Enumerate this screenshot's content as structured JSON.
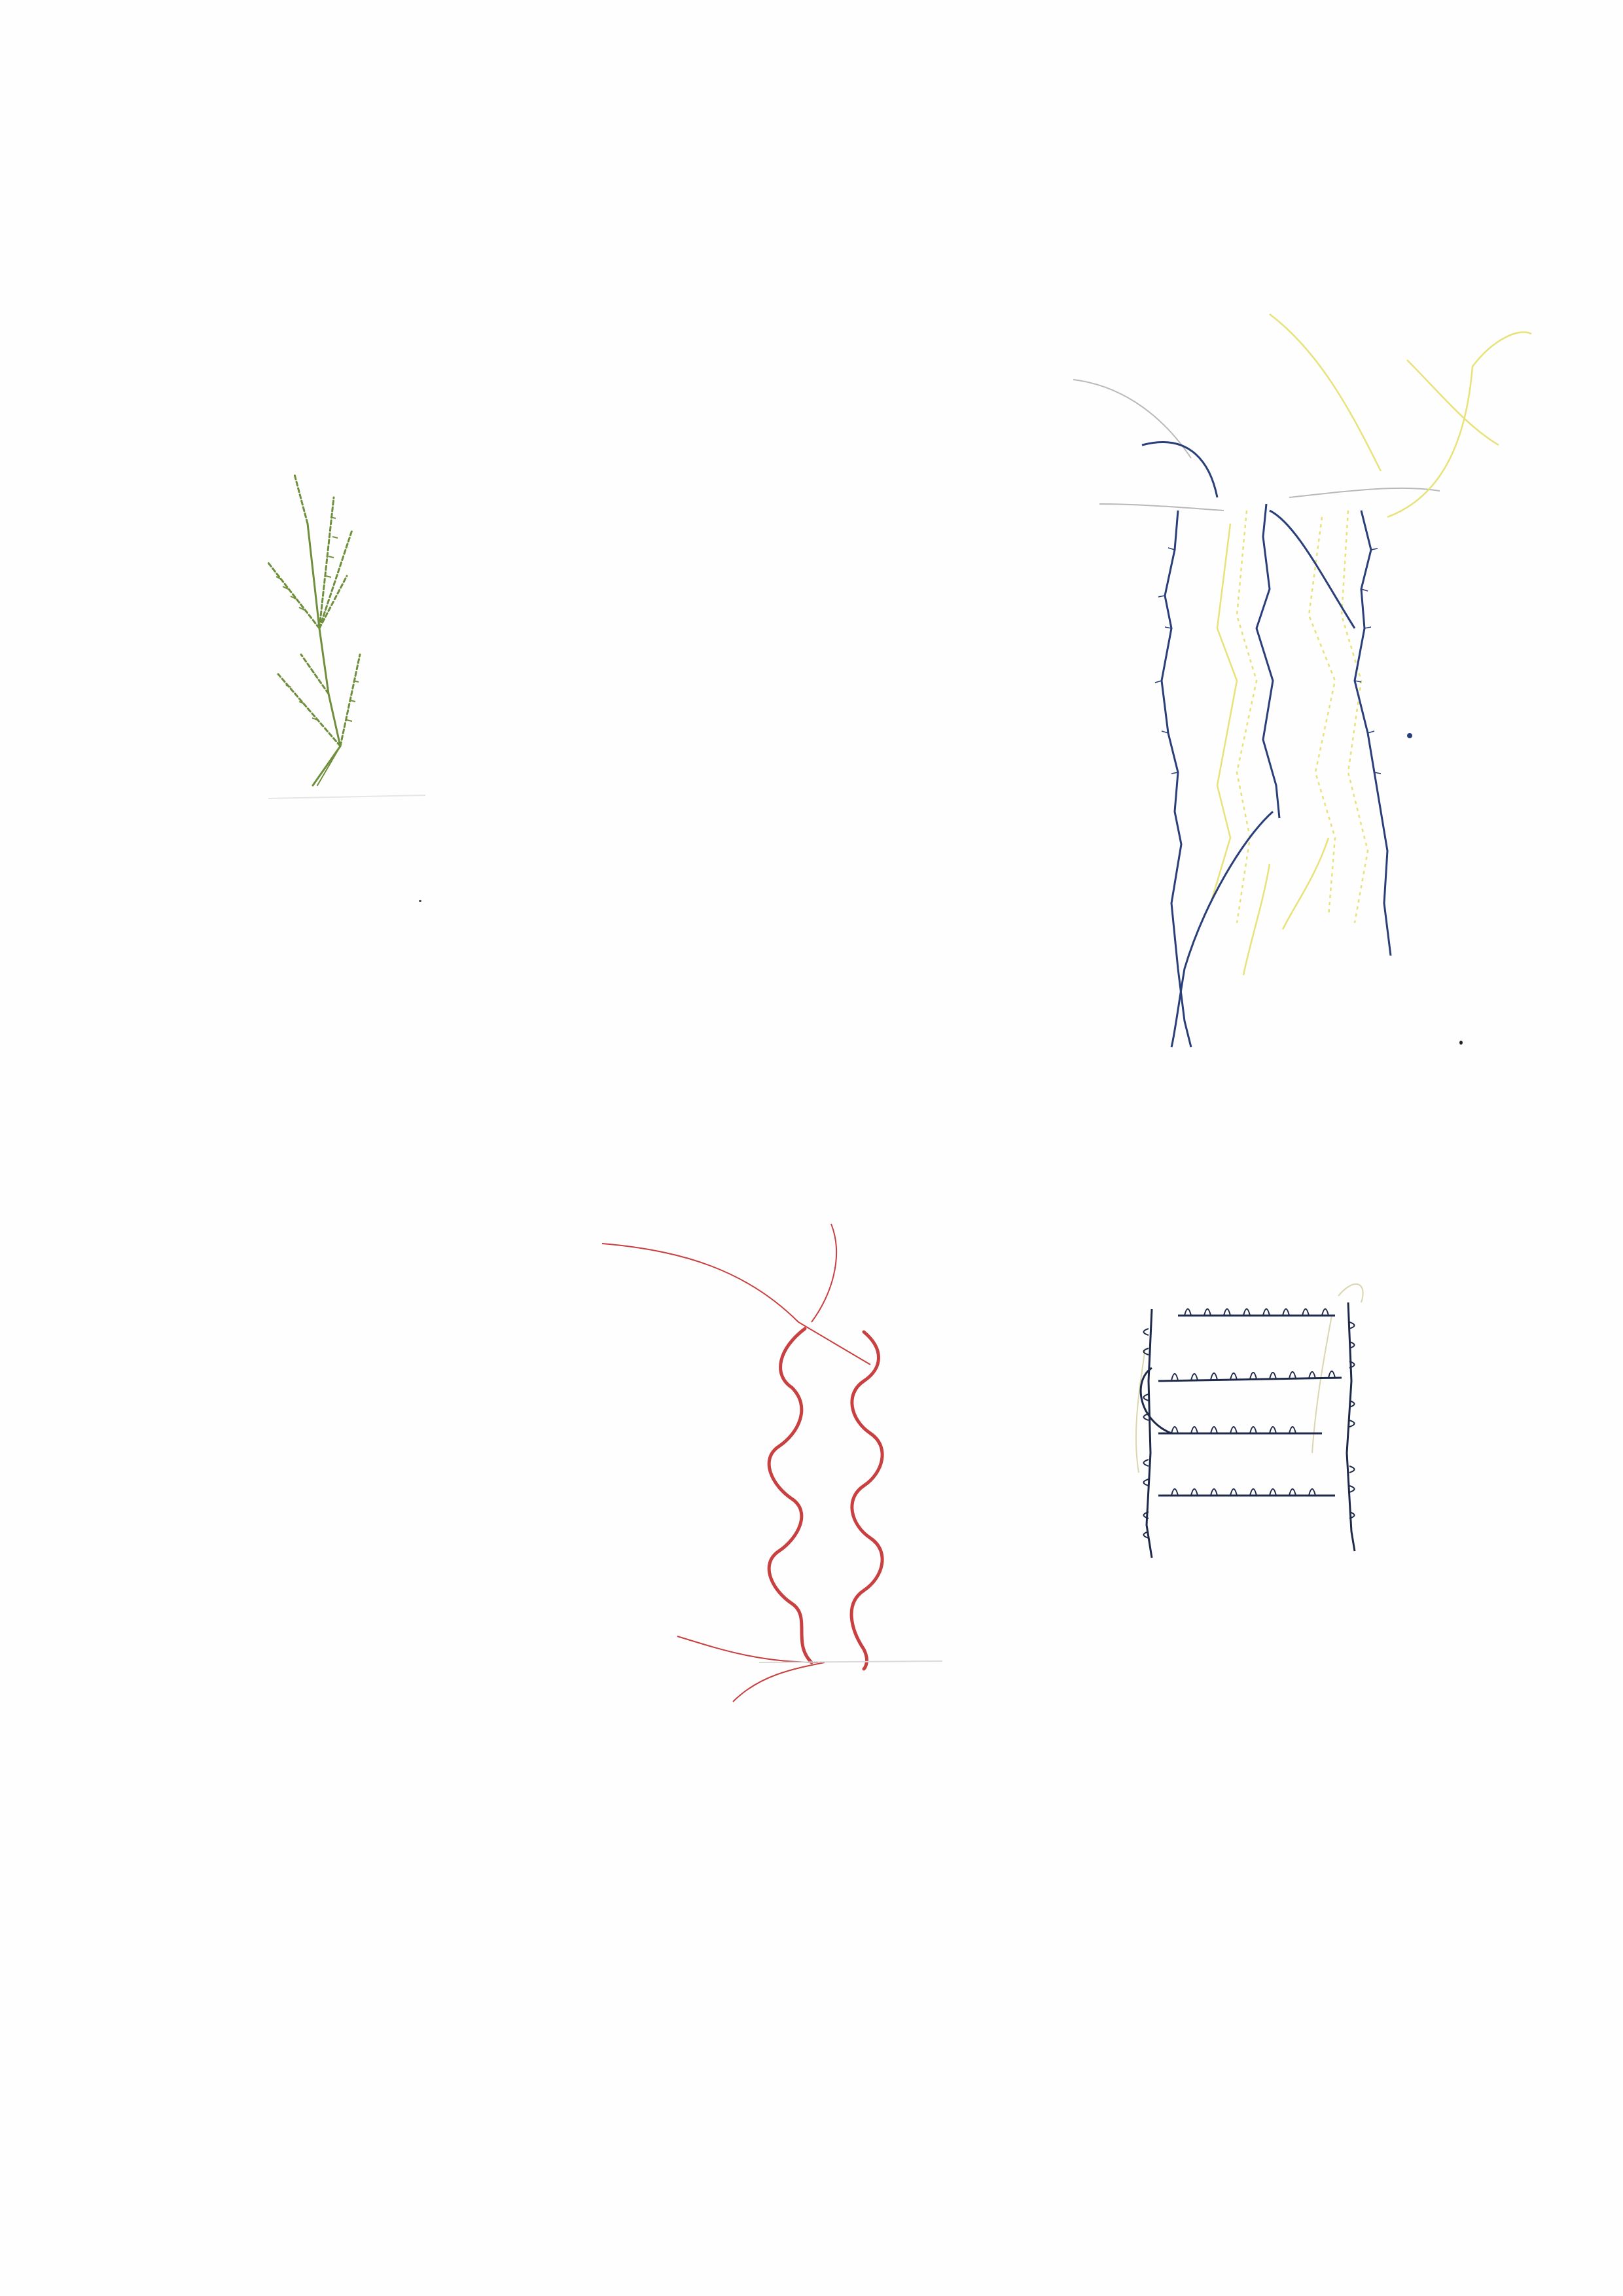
{
  "page": {
    "background": "#fefefe"
  },
  "samples": [
    {
      "name": "green-sprig",
      "thread_color": "#6f8f3d"
    },
    {
      "name": "blue-yellow-figure",
      "thread_colors": [
        "#2a3f7a",
        "#e8e27a",
        "#b9b9b9"
      ]
    },
    {
      "name": "red-wave-ladder",
      "thread_color": "#c8403f"
    },
    {
      "name": "navy-ladder",
      "thread_colors": [
        "#1f2a4a",
        "#d9d6b0"
      ]
    }
  ]
}
